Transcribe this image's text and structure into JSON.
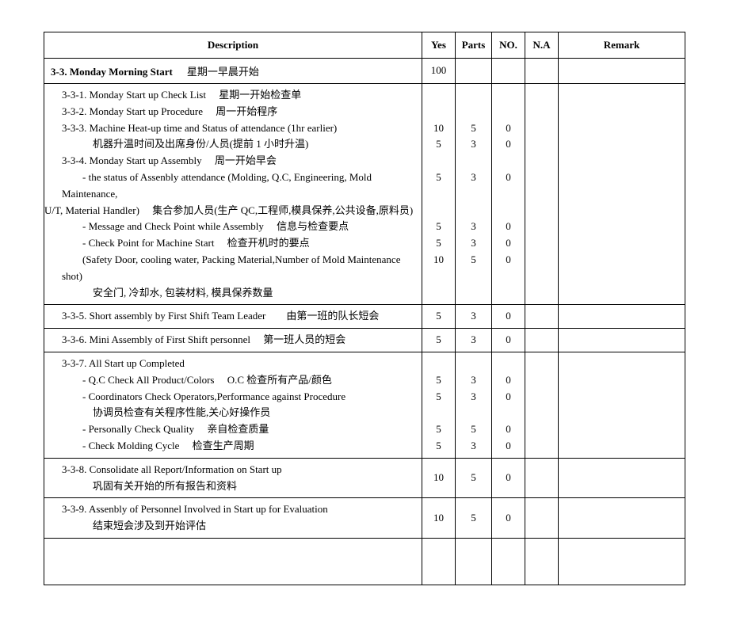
{
  "headers": {
    "description": "Description",
    "yes": "Yes",
    "parts": "Parts",
    "no": "NO.",
    "na": "N.A",
    "remark": "Remark"
  },
  "section": {
    "number": "3-3.",
    "title_en": "Monday Morning Start",
    "title_cn": "星期一早晨开始",
    "yes": "100"
  },
  "rows": [
    {
      "lines": [
        "3-3-1. Monday Start up Check List  星期一开始检查单",
        "3-3-2. Monday Start up Procedure  周一开始程序",
        "3-3-3. Machine Heat-up time and Status of attendance (1hr earlier)",
        "   机器升温时间及出席身份/人员(提前 1 小时升温)",
        "3-3-4. Monday Start up Assembly  周一开始早会",
        "  - the status of Assenbly attendance (Molding, Q.C, Engineering, Mold Maintenance,",
        "U/T, Material Handler)  集合参加人员(生产 QC,工程师,模具保养,公共设备,原料员)",
        "  - Message and Check Point while Assembly  信息与检查要点",
        "  - Check Point for Machine Start  检查开机时的要点",
        "  (Safety Door, cooling water, Packing Material,Number of Mold Maintenance shot)",
        "   安全门, 冷却水, 包装材料, 模具保养数量"
      ],
      "yes": [
        "",
        "10",
        "5",
        "",
        "5",
        "",
        "",
        "5",
        "5",
        "10",
        ""
      ],
      "parts": [
        "",
        "5",
        "3",
        "",
        "3",
        "",
        "",
        "3",
        "3",
        "5",
        ""
      ],
      "no": [
        "",
        "0",
        "0",
        "",
        "0",
        "",
        "",
        "0",
        "0",
        "0",
        ""
      ]
    },
    {
      "lines": [
        "3-3-5. Short assembly by First Shift Team Leader  由第一班的队长短会"
      ],
      "yes": [
        "5"
      ],
      "parts": [
        "3"
      ],
      "no": [
        "0"
      ]
    },
    {
      "lines": [
        "3-3-6. Mini Assembly of First Shift personnel  第一班人员的短会"
      ],
      "yes": [
        "5"
      ],
      "parts": [
        "3"
      ],
      "no": [
        "0"
      ]
    },
    {
      "lines": [
        "3-3-7. All Start up Completed",
        "  - Q.C Check All Product/Colors  O.C 检查所有产品/颜色",
        "  - Coordinators Check Operators,Performance against Procedure",
        "   协调员检查有关程序性能,关心好操作员",
        "  - Personally Check Quality  亲自检查质量",
        "  - Check Molding Cycle  检查生产周期"
      ],
      "yes": [
        "",
        "5",
        "5",
        "",
        "5",
        "5"
      ],
      "parts": [
        "",
        "3",
        "3",
        "",
        "5",
        "3"
      ],
      "no": [
        "",
        "0",
        "0",
        "",
        "0",
        "0"
      ]
    },
    {
      "lines": [
        "3-3-8. Consolidate all Report/Information on Start up",
        "   巩固有关开始的所有报告和资料"
      ],
      "yes": [
        "10"
      ],
      "parts": [
        "5"
      ],
      "no": [
        "0"
      ]
    },
    {
      "lines": [
        "3-3-9. Assenbly of Personnel Involved in Start up for Evaluation",
        "   结束短会涉及到开始评估"
      ],
      "yes": [
        "10"
      ],
      "parts": [
        "5"
      ],
      "no": [
        "0"
      ]
    }
  ]
}
